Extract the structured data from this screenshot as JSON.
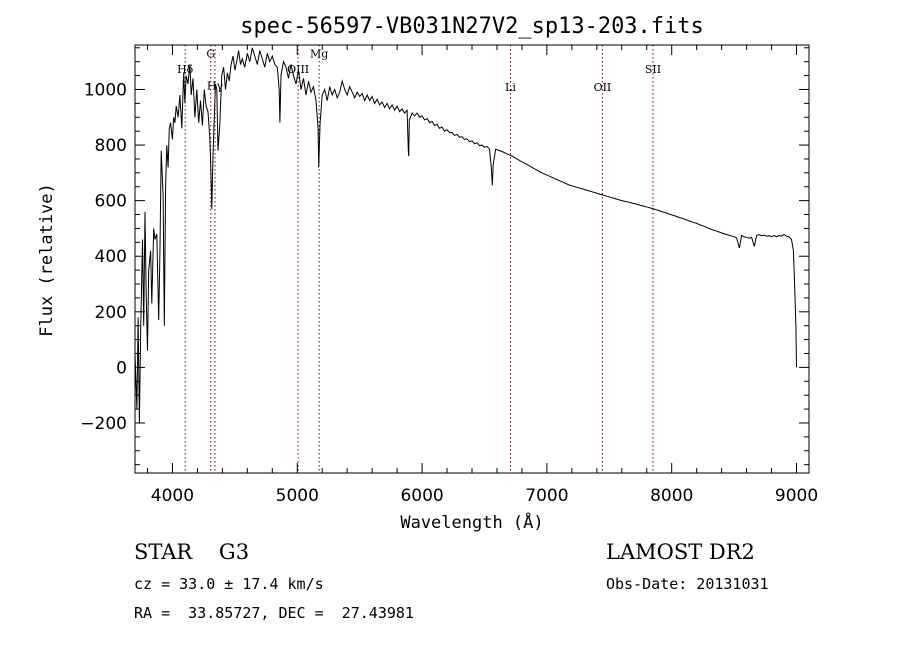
{
  "chart_data": {
    "type": "line",
    "title": "spec-56597-VB031N27V2_sp13-203.fits",
    "xlabel": "Wavelength (Å)",
    "ylabel": "Flux (relative)",
    "xlim": [
      3700,
      9100
    ],
    "ylim": [
      -380,
      1160
    ],
    "xticks": [
      4000,
      5000,
      6000,
      7000,
      8000,
      9000
    ],
    "yticks": [
      -200,
      0,
      200,
      400,
      600,
      800,
      1000
    ],
    "grid": false,
    "series": [
      {
        "points": [
          [
            3700,
            50
          ],
          [
            3715,
            -150
          ],
          [
            3725,
            180
          ],
          [
            3735,
            -200
          ],
          [
            3745,
            120
          ],
          [
            3760,
            460
          ],
          [
            3770,
            150
          ],
          [
            3780,
            560
          ],
          [
            3790,
            260
          ],
          [
            3800,
            60
          ],
          [
            3810,
            350
          ],
          [
            3825,
            420
          ],
          [
            3835,
            230
          ],
          [
            3850,
            500
          ],
          [
            3860,
            460
          ],
          [
            3875,
            480
          ],
          [
            3890,
            170
          ],
          [
            3900,
            430
          ],
          [
            3910,
            780
          ],
          [
            3925,
            620
          ],
          [
            3935,
            150
          ],
          [
            3945,
            650
          ],
          [
            3955,
            800
          ],
          [
            3965,
            720
          ],
          [
            3975,
            860
          ],
          [
            3985,
            880
          ],
          [
            4000,
            820
          ],
          [
            4010,
            900
          ],
          [
            4020,
            880
          ],
          [
            4030,
            940
          ],
          [
            4045,
            900
          ],
          [
            4060,
            980
          ],
          [
            4075,
            860
          ],
          [
            4090,
            1060
          ],
          [
            4100,
            950
          ],
          [
            4110,
            1050
          ],
          [
            4125,
            1020
          ],
          [
            4140,
            1090
          ],
          [
            4150,
            980
          ],
          [
            4165,
            1040
          ],
          [
            4180,
            900
          ],
          [
            4195,
            1000
          ],
          [
            4210,
            880
          ],
          [
            4225,
            960
          ],
          [
            4240,
            870
          ],
          [
            4255,
            1000
          ],
          [
            4270,
            940
          ],
          [
            4285,
            920
          ],
          [
            4300,
            820
          ],
          [
            4310,
            680
          ],
          [
            4315,
            570
          ],
          [
            4325,
            760
          ],
          [
            4335,
            900
          ],
          [
            4345,
            1020
          ],
          [
            4355,
            1000
          ],
          [
            4365,
            780
          ],
          [
            4380,
            880
          ],
          [
            4395,
            1050
          ],
          [
            4410,
            1080
          ],
          [
            4425,
            1000
          ],
          [
            4440,
            1060
          ],
          [
            4455,
            1030
          ],
          [
            4470,
            1090
          ],
          [
            4485,
            1120
          ],
          [
            4500,
            1070
          ],
          [
            4515,
            1100
          ],
          [
            4530,
            1140
          ],
          [
            4545,
            1090
          ],
          [
            4560,
            1110
          ],
          [
            4580,
            1080
          ],
          [
            4600,
            1130
          ],
          [
            4620,
            1100
          ],
          [
            4640,
            1150
          ],
          [
            4660,
            1120
          ],
          [
            4680,
            1090
          ],
          [
            4700,
            1140
          ],
          [
            4720,
            1110
          ],
          [
            4740,
            1080
          ],
          [
            4760,
            1130
          ],
          [
            4780,
            1100
          ],
          [
            4800,
            1120
          ],
          [
            4820,
            1090
          ],
          [
            4840,
            1080
          ],
          [
            4855,
            1000
          ],
          [
            4861,
            880
          ],
          [
            4870,
            1050
          ],
          [
            4890,
            1100
          ],
          [
            4910,
            1080
          ],
          [
            4930,
            1040
          ],
          [
            4950,
            1090
          ],
          [
            4970,
            1050
          ],
          [
            4990,
            1020
          ],
          [
            5010,
            1070
          ],
          [
            5030,
            1000
          ],
          [
            5050,
            1040
          ],
          [
            5070,
            980
          ],
          [
            5090,
            1030
          ],
          [
            5110,
            990
          ],
          [
            5130,
            1010
          ],
          [
            5150,
            960
          ],
          [
            5167,
            860
          ],
          [
            5172,
            720
          ],
          [
            5183,
            880
          ],
          [
            5200,
            980
          ],
          [
            5220,
            1000
          ],
          [
            5240,
            960
          ],
          [
            5260,
            1010
          ],
          [
            5280,
            980
          ],
          [
            5300,
            1000
          ],
          [
            5320,
            970
          ],
          [
            5340,
            990
          ],
          [
            5360,
            1030
          ],
          [
            5380,
            1000
          ],
          [
            5400,
            980
          ],
          [
            5420,
            1010
          ],
          [
            5440,
            990
          ],
          [
            5460,
            970
          ],
          [
            5480,
            990
          ],
          [
            5500,
            975
          ],
          [
            5520,
            985
          ],
          [
            5540,
            960
          ],
          [
            5560,
            980
          ],
          [
            5580,
            960
          ],
          [
            5600,
            975
          ],
          [
            5620,
            950
          ],
          [
            5640,
            965
          ],
          [
            5660,
            945
          ],
          [
            5680,
            955
          ],
          [
            5700,
            935
          ],
          [
            5720,
            950
          ],
          [
            5740,
            930
          ],
          [
            5760,
            945
          ],
          [
            5780,
            925
          ],
          [
            5800,
            940
          ],
          [
            5820,
            920
          ],
          [
            5840,
            930
          ],
          [
            5860,
            915
          ],
          [
            5880,
            925
          ],
          [
            5890,
            780
          ],
          [
            5893,
            760
          ],
          [
            5898,
            890
          ],
          [
            5920,
            915
          ],
          [
            5940,
            905
          ],
          [
            5960,
            915
          ],
          [
            5980,
            900
          ],
          [
            6000,
            905
          ],
          [
            6020,
            890
          ],
          [
            6040,
            895
          ],
          [
            6060,
            880
          ],
          [
            6080,
            885
          ],
          [
            6100,
            870
          ],
          [
            6120,
            875
          ],
          [
            6140,
            860
          ],
          [
            6160,
            865
          ],
          [
            6180,
            850
          ],
          [
            6200,
            855
          ],
          [
            6220,
            845
          ],
          [
            6240,
            845
          ],
          [
            6260,
            835
          ],
          [
            6280,
            838
          ],
          [
            6300,
            828
          ],
          [
            6320,
            830
          ],
          [
            6340,
            820
          ],
          [
            6360,
            822
          ],
          [
            6380,
            812
          ],
          [
            6400,
            815
          ],
          [
            6420,
            805
          ],
          [
            6440,
            808
          ],
          [
            6460,
            798
          ],
          [
            6480,
            800
          ],
          [
            6500,
            792
          ],
          [
            6520,
            795
          ],
          [
            6540,
            785
          ],
          [
            6555,
            720
          ],
          [
            6563,
            655
          ],
          [
            6570,
            730
          ],
          [
            6590,
            785
          ],
          [
            6620,
            780
          ],
          [
            6650,
            775
          ],
          [
            6680,
            768
          ],
          [
            6700,
            765
          ],
          [
            6730,
            758
          ],
          [
            6760,
            750
          ],
          [
            6790,
            742
          ],
          [
            6820,
            735
          ],
          [
            6850,
            728
          ],
          [
            6880,
            720
          ],
          [
            6910,
            712
          ],
          [
            6940,
            705
          ],
          [
            6970,
            698
          ],
          [
            7000,
            692
          ],
          [
            7030,
            686
          ],
          [
            7060,
            680
          ],
          [
            7090,
            674
          ],
          [
            7120,
            668
          ],
          [
            7150,
            662
          ],
          [
            7180,
            656
          ],
          [
            7210,
            652
          ],
          [
            7240,
            648
          ],
          [
            7270,
            644
          ],
          [
            7300,
            640
          ],
          [
            7330,
            636
          ],
          [
            7360,
            632
          ],
          [
            7390,
            628
          ],
          [
            7420,
            624
          ],
          [
            7450,
            620
          ],
          [
            7480,
            616
          ],
          [
            7510,
            612
          ],
          [
            7540,
            608
          ],
          [
            7570,
            604
          ],
          [
            7600,
            600
          ],
          [
            7630,
            597
          ],
          [
            7660,
            594
          ],
          [
            7690,
            590
          ],
          [
            7720,
            587
          ],
          [
            7750,
            583
          ],
          [
            7780,
            580
          ],
          [
            7810,
            576
          ],
          [
            7840,
            572
          ],
          [
            7870,
            568
          ],
          [
            7900,
            564
          ],
          [
            7930,
            559
          ],
          [
            7960,
            555
          ],
          [
            7990,
            550
          ],
          [
            8020,
            546
          ],
          [
            8050,
            541
          ],
          [
            8080,
            537
          ],
          [
            8110,
            532
          ],
          [
            8140,
            527
          ],
          [
            8170,
            522
          ],
          [
            8200,
            518
          ],
          [
            8230,
            512
          ],
          [
            8260,
            508
          ],
          [
            8290,
            502
          ],
          [
            8320,
            496
          ],
          [
            8350,
            492
          ],
          [
            8380,
            487
          ],
          [
            8410,
            482
          ],
          [
            8440,
            478
          ],
          [
            8470,
            474
          ],
          [
            8500,
            470
          ],
          [
            8520,
            466
          ],
          [
            8542,
            430
          ],
          [
            8560,
            475
          ],
          [
            8580,
            470
          ],
          [
            8600,
            468
          ],
          [
            8620,
            465
          ],
          [
            8640,
            468
          ],
          [
            8662,
            435
          ],
          [
            8680,
            475
          ],
          [
            8700,
            478
          ],
          [
            8720,
            474
          ],
          [
            8740,
            476
          ],
          [
            8760,
            472
          ],
          [
            8780,
            474
          ],
          [
            8800,
            470
          ],
          [
            8820,
            475
          ],
          [
            8840,
            470
          ],
          [
            8860,
            475
          ],
          [
            8880,
            472
          ],
          [
            8900,
            478
          ],
          [
            8920,
            472
          ],
          [
            8940,
            470
          ],
          [
            8960,
            460
          ],
          [
            8975,
            420
          ],
          [
            8985,
            300
          ],
          [
            8995,
            150
          ],
          [
            9000,
            0
          ]
        ]
      }
    ],
    "line_markers": [
      {
        "label": "Hδ",
        "x": 4102,
        "label_flux": 1060
      },
      {
        "label": "G",
        "x": 4307,
        "label_flux": 1115
      },
      {
        "label": "Hγ",
        "x": 4341,
        "label_flux": 1000
      },
      {
        "label": "OIII",
        "x": 5007,
        "label_flux": 1060
      },
      {
        "label": "Mg",
        "x": 5175,
        "label_flux": 1115
      },
      {
        "label": "Li",
        "x": 6708,
        "label_flux": 995
      },
      {
        "label": "OII",
        "x": 7445,
        "label_flux": 995
      },
      {
        "label": "SII",
        "x": 7850,
        "label_flux": 1060
      }
    ],
    "colors": {
      "spectrum": "#000000",
      "markers": "#8b0000"
    }
  },
  "info": {
    "object_class": "STAR    G3",
    "survey": "LAMOST DR2",
    "redshift": "cz = 33.0 ± 17.4 km/s",
    "obs_date": "Obs-Date: 20131031",
    "coords": "RA =  33.85727, DEC =  27.43981"
  }
}
